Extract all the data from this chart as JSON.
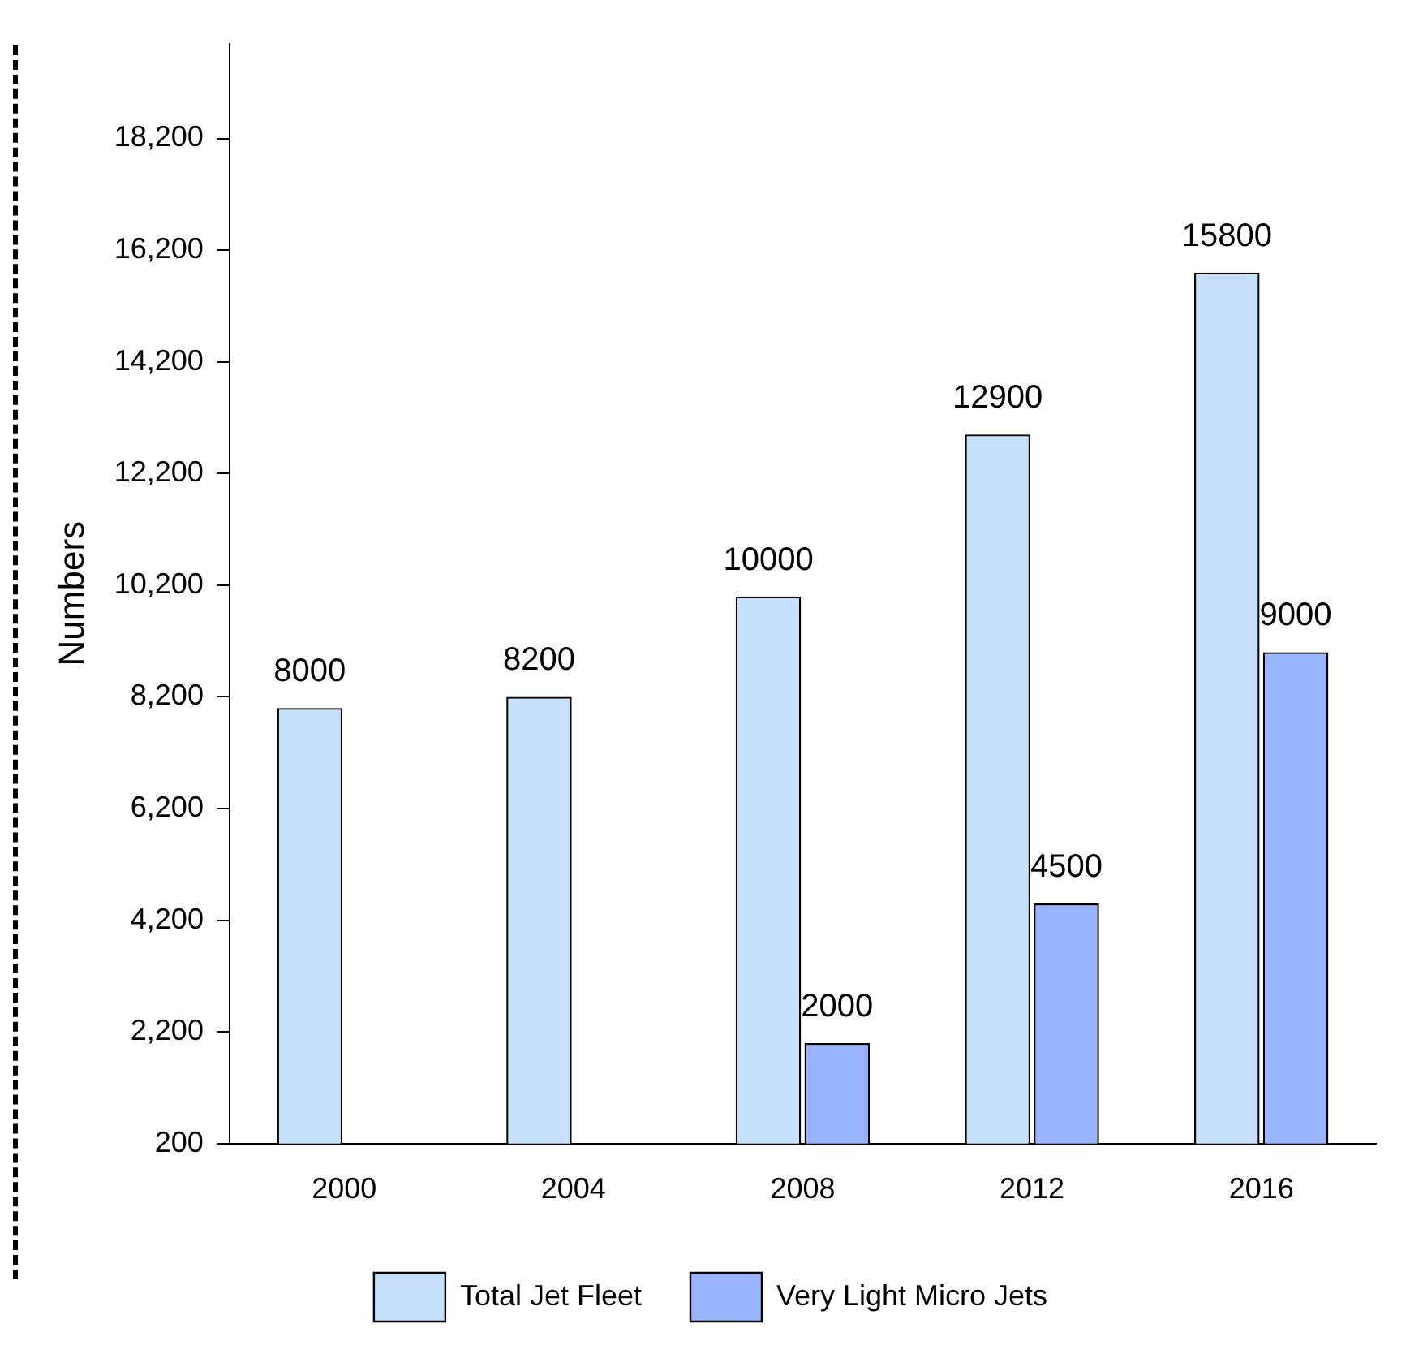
{
  "chart_data": {
    "type": "bar",
    "ylabel": "Numbers",
    "categories": [
      "2000",
      "2004",
      "2008",
      "2012",
      "2016"
    ],
    "series": [
      {
        "name": "Total Jet Fleet",
        "color": "#c6e0fb",
        "values": [
          8000,
          8200,
          10000,
          12900,
          15800
        ]
      },
      {
        "name": "Very Light Micro Jets",
        "color": "#99b3ff",
        "values": [
          null,
          null,
          2000,
          4500,
          9000
        ]
      }
    ],
    "ylim": [
      200,
      19900
    ],
    "yticks": [
      {
        "value": 200,
        "label": "200"
      },
      {
        "value": 2200,
        "label": "2,200"
      },
      {
        "value": 4200,
        "label": "4,200"
      },
      {
        "value": 6200,
        "label": "6,200"
      },
      {
        "value": 8200,
        "label": "8,200"
      },
      {
        "value": 10200,
        "label": "10,200"
      },
      {
        "value": 12200,
        "label": "12,200"
      },
      {
        "value": 14200,
        "label": "14,200"
      },
      {
        "value": 16200,
        "label": "16,200"
      },
      {
        "value": 18200,
        "label": "18,200"
      }
    ],
    "data_labels": true,
    "grid": false,
    "legend": "bottom"
  }
}
